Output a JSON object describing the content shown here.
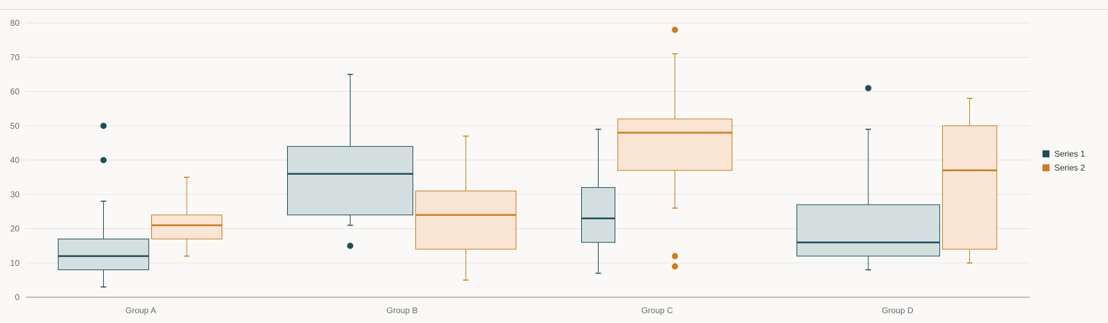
{
  "chart_data": {
    "type": "boxplot",
    "categories": [
      "Group A",
      "Group B",
      "Group C",
      "Group D"
    ],
    "y_ticks": [
      0,
      10,
      20,
      30,
      40,
      50,
      60,
      70,
      80
    ],
    "ylim": [
      0,
      80
    ],
    "grid": true,
    "legend_position": "right",
    "series": [
      {
        "name": "Series 1",
        "color": "#1f4e5a",
        "fill": "#d3dfdf",
        "boxes": [
          {
            "min": 3,
            "q1": 8,
            "median": 12,
            "q3": 17,
            "max": 28,
            "outliers": [
              40,
              50
            ]
          },
          {
            "min": 21,
            "q1": 24,
            "median": 36,
            "q3": 44,
            "max": 65,
            "outliers": [
              15
            ]
          },
          {
            "min": 7,
            "q1": 16,
            "median": 23,
            "q3": 32,
            "max": 49,
            "outliers": []
          },
          {
            "min": 8,
            "q1": 12,
            "median": 16,
            "q3": 27,
            "max": 49,
            "outliers": [
              61
            ]
          }
        ]
      },
      {
        "name": "Series 2",
        "color": "#d17b1c",
        "fill": "#f8e5d3",
        "boxes": [
          {
            "min": 12,
            "q1": 17,
            "median": 21,
            "q3": 24,
            "max": 35,
            "outliers": []
          },
          {
            "min": 5,
            "q1": 14,
            "median": 24,
            "q3": 31,
            "max": 47,
            "outliers": []
          },
          {
            "min": 26,
            "q1": 37,
            "median": 48,
            "q3": 52,
            "max": 71,
            "outliers": [
              78,
              12,
              9
            ]
          },
          {
            "min": 10,
            "q1": 14,
            "median": 37,
            "q3": 50,
            "max": 58,
            "outliers": []
          }
        ]
      }
    ]
  }
}
